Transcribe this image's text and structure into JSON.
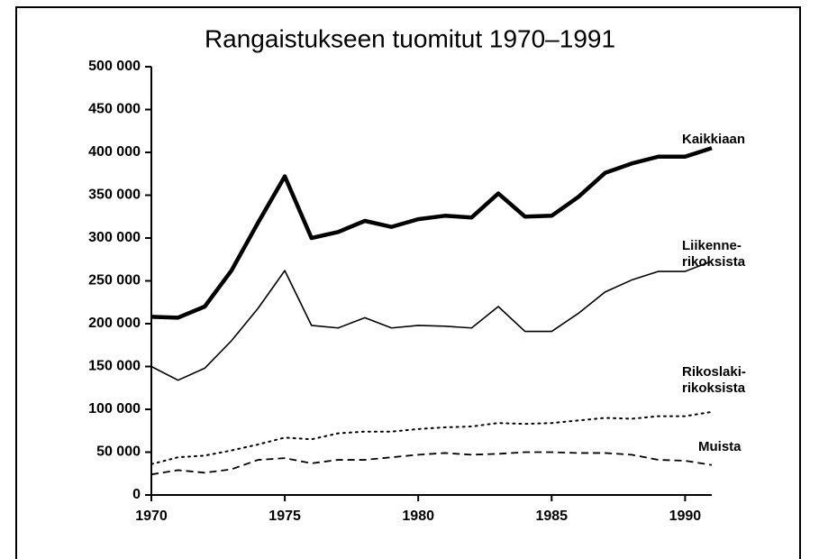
{
  "chart_data": {
    "type": "line",
    "title": "Rangaistukseen tuomitut 1970–1991",
    "x": [
      1970,
      1971,
      1972,
      1973,
      1974,
      1975,
      1976,
      1977,
      1978,
      1979,
      1980,
      1981,
      1982,
      1983,
      1984,
      1985,
      1986,
      1987,
      1988,
      1989,
      1990,
      1991
    ],
    "series": [
      {
        "name": "Kaikkiaan",
        "color": "#000000",
        "linewidth": 4.5,
        "linestyle": "solid",
        "values": [
          208000,
          207000,
          220000,
          262000,
          318000,
          372000,
          300000,
          307000,
          320000,
          313000,
          322000,
          326000,
          324000,
          352000,
          325000,
          326000,
          348000,
          376000,
          387000,
          395000,
          395000,
          405000
        ]
      },
      {
        "name": "Liikenne-rikoksista",
        "color": "#000000",
        "linewidth": 1.6,
        "linestyle": "solid",
        "values": [
          150000,
          134000,
          148000,
          180000,
          218000,
          262000,
          198000,
          195000,
          207000,
          195000,
          198000,
          197000,
          195000,
          220000,
          191000,
          191000,
          212000,
          237000,
          251000,
          261000,
          261000,
          273000
        ]
      },
      {
        "name": "Rikoslaki-rikoksista",
        "color": "#000000",
        "linewidth": 2,
        "linestyle": "dotted",
        "values": [
          36000,
          44000,
          46000,
          52000,
          59000,
          67000,
          65000,
          72000,
          74000,
          74000,
          77000,
          79000,
          80000,
          84000,
          83000,
          84000,
          87000,
          90000,
          89000,
          92000,
          92000,
          97000
        ]
      },
      {
        "name": "Muista",
        "color": "#000000",
        "linewidth": 1.8,
        "linestyle": "dashed",
        "values": [
          24000,
          29000,
          26000,
          30000,
          41000,
          43000,
          37000,
          41000,
          41000,
          44000,
          47000,
          49000,
          47000,
          48000,
          50000,
          50000,
          49000,
          49000,
          47000,
          41000,
          40000,
          35000
        ]
      }
    ],
    "xlim": [
      1970,
      1991
    ],
    "xticks": [
      1970,
      1975,
      1980,
      1985,
      1990
    ],
    "ylim": [
      0,
      500000
    ],
    "yticks": [
      0,
      {
        "value": 50000,
        "label": "50 000"
      },
      {
        "value": 100000,
        "label": "100 000"
      },
      {
        "value": 150000,
        "label": "150 000"
      },
      {
        "value": 200000,
        "label": "200 000"
      },
      {
        "value": 250000,
        "label": "250 000"
      },
      {
        "value": 300000,
        "label": "300 000"
      },
      {
        "value": 350000,
        "label": "350 000"
      },
      {
        "value": 400000,
        "label": "400 000"
      },
      {
        "value": 450000,
        "label": "450 000"
      },
      {
        "value": 500000,
        "label": "500 000"
      }
    ],
    "grid": false
  }
}
